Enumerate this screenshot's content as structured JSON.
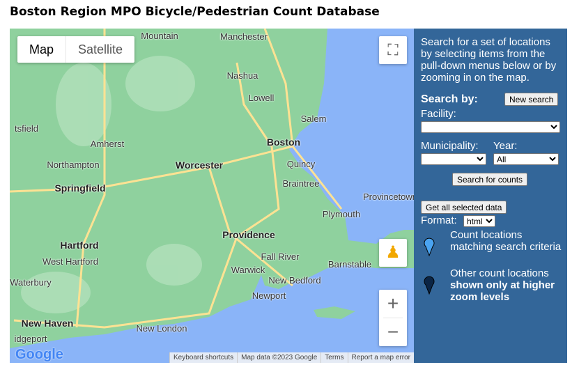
{
  "title": "Boston Region MPO Bicycle/Pedestrian Count Database",
  "map": {
    "type_controls": {
      "map": "Map",
      "satellite": "Satellite",
      "selected": "Map"
    },
    "cities": [
      "Mountain",
      "Manchester",
      "Nashua",
      "Lowell",
      "Salem",
      "Boston",
      "Quincy",
      "Braintree",
      "Worcester",
      "Amherst",
      "Northampton",
      "Springfield",
      "Hartford",
      "West Hartford",
      "Waterbury",
      "New Haven",
      "New London",
      "Providence",
      "Warwick",
      "Fall River",
      "New Bedford",
      "Newport",
      "Plymouth",
      "Barnstable",
      "Provincetown",
      "idgeport",
      "tsfield"
    ],
    "attribution": [
      "Keyboard shortcuts",
      "Map data ©2023 Google",
      "Terms",
      "Report a map error"
    ],
    "logo": "Google",
    "icons": {
      "fullscreen": "fullscreen-icon",
      "pegman": "pegman-icon",
      "zoom_in": "+",
      "zoom_out": "−"
    },
    "colors": {
      "land": "#8fd19e",
      "water": "#8ab4f8",
      "road": "#fde293"
    }
  },
  "panel": {
    "intro": "Search for a set of locations by selecting items from the pull-down menus below or by zooming in on the map.",
    "search_by": "Search by:",
    "new_search": "New search",
    "facility_label": "Facility:",
    "facility_value": "",
    "municipality_label": "Municipality:",
    "municipality_value": "",
    "year_label": "Year:",
    "year_value": "All",
    "search_button": "Search for counts",
    "get_data_button": "Get all selected data",
    "format_label": "Format:",
    "format_value": "html",
    "legend": [
      {
        "text": "Count locations matching search criteria",
        "color": "#4aa3f0"
      },
      {
        "text": "Other count locations",
        "bold": "shown only at higher zoom levels",
        "color": "#0b2545"
      }
    ],
    "background": "#336699"
  }
}
